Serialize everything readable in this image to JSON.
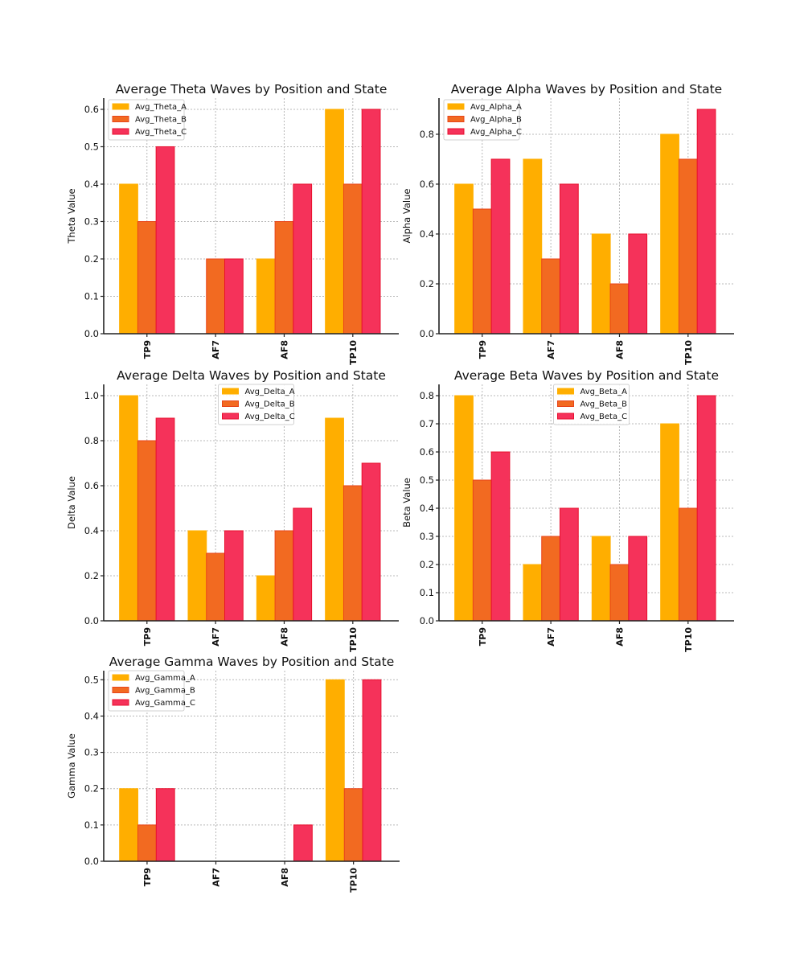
{
  "figure": {
    "colors": {
      "A": {
        "fill": "#FFAE00",
        "edge": "#FFB000"
      },
      "B": {
        "fill": "#F26A21",
        "edge": "#E8451A"
      },
      "C": {
        "fill": "#F5325A",
        "edge": "#E8102E"
      }
    }
  },
  "chart_data": [
    {
      "type": "bar",
      "title": "Average Theta Waves by Position and State",
      "xlabel": "",
      "ylabel": "Theta Value",
      "categories": [
        "TP9",
        "AF7",
        "AF8",
        "TP10"
      ],
      "series": [
        {
          "name": "Avg_Theta_A",
          "key": "A",
          "values": [
            0.4,
            0.0,
            0.2,
            0.6
          ]
        },
        {
          "name": "Avg_Theta_B",
          "key": "B",
          "values": [
            0.3,
            0.2,
            0.3,
            0.4
          ]
        },
        {
          "name": "Avg_Theta_C",
          "key": "C",
          "values": [
            0.5,
            0.2,
            0.4,
            0.6
          ]
        }
      ],
      "ylim": [
        0,
        0.63
      ],
      "yticks": [
        "0.0",
        "0.1",
        "0.2",
        "0.3",
        "0.4",
        "0.5",
        "0.6"
      ],
      "ytick_values": [
        0,
        0.1,
        0.2,
        0.3,
        0.4,
        0.5,
        0.6
      ],
      "grid": true,
      "legend_position": "upper-left"
    },
    {
      "type": "bar",
      "title": "Average Alpha Waves by Position and State",
      "xlabel": "",
      "ylabel": "Alpha Value",
      "categories": [
        "TP9",
        "AF7",
        "AF8",
        "TP10"
      ],
      "series": [
        {
          "name": "Avg_Alpha_A",
          "key": "A",
          "values": [
            0.6,
            0.7,
            0.4,
            0.8
          ]
        },
        {
          "name": "Avg_Alpha_B",
          "key": "B",
          "values": [
            0.5,
            0.3,
            0.2,
            0.7
          ]
        },
        {
          "name": "Avg_Alpha_C",
          "key": "C",
          "values": [
            0.7,
            0.6,
            0.4,
            0.9
          ]
        }
      ],
      "ylim": [
        0,
        0.945
      ],
      "yticks": [
        "0.0",
        "0.2",
        "0.4",
        "0.6",
        "0.8"
      ],
      "ytick_values": [
        0,
        0.2,
        0.4,
        0.6,
        0.8
      ],
      "grid": true,
      "legend_position": "upper-left"
    },
    {
      "type": "bar",
      "title": "Average Delta Waves by Position and State",
      "xlabel": "",
      "ylabel": "Delta Value",
      "categories": [
        "TP9",
        "AF7",
        "AF8",
        "TP10"
      ],
      "series": [
        {
          "name": "Avg_Delta_A",
          "key": "A",
          "values": [
            1.0,
            0.4,
            0.2,
            0.9
          ]
        },
        {
          "name": "Avg_Delta_B",
          "key": "B",
          "values": [
            0.8,
            0.3,
            0.4,
            0.6
          ]
        },
        {
          "name": "Avg_Delta_C",
          "key": "C",
          "values": [
            0.9,
            0.4,
            0.5,
            0.7
          ]
        }
      ],
      "ylim": [
        0,
        1.05
      ],
      "yticks": [
        "0.0",
        "0.2",
        "0.4",
        "0.6",
        "0.8",
        "1.0"
      ],
      "ytick_values": [
        0,
        0.2,
        0.4,
        0.6,
        0.8,
        1.0
      ],
      "grid": true,
      "legend_position": "upper-center"
    },
    {
      "type": "bar",
      "title": "Average Beta Waves by Position and State",
      "xlabel": "",
      "ylabel": "Beta Value",
      "categories": [
        "TP9",
        "AF7",
        "AF8",
        "TP10"
      ],
      "series": [
        {
          "name": "Avg_Beta_A",
          "key": "A",
          "values": [
            0.8,
            0.2,
            0.3,
            0.7
          ]
        },
        {
          "name": "Avg_Beta_B",
          "key": "B",
          "values": [
            0.5,
            0.3,
            0.2,
            0.4
          ]
        },
        {
          "name": "Avg_Beta_C",
          "key": "C",
          "values": [
            0.6,
            0.4,
            0.3,
            0.8
          ]
        }
      ],
      "ylim": [
        0,
        0.84
      ],
      "yticks": [
        "0.0",
        "0.1",
        "0.2",
        "0.3",
        "0.4",
        "0.5",
        "0.6",
        "0.7",
        "0.8"
      ],
      "ytick_values": [
        0,
        0.1,
        0.2,
        0.3,
        0.4,
        0.5,
        0.6,
        0.7,
        0.8
      ],
      "grid": true,
      "legend_position": "upper-center"
    },
    {
      "type": "bar",
      "title": "Average Gamma Waves by Position and State",
      "xlabel": "",
      "ylabel": "Gamma Value",
      "categories": [
        "TP9",
        "AF7",
        "AF8",
        "TP10"
      ],
      "series": [
        {
          "name": "Avg_Gamma_A",
          "key": "A",
          "values": [
            0.2,
            0.0,
            0.0,
            0.5
          ]
        },
        {
          "name": "Avg_Gamma_B",
          "key": "B",
          "values": [
            0.1,
            0.0,
            0.0,
            0.2
          ]
        },
        {
          "name": "Avg_Gamma_C",
          "key": "C",
          "values": [
            0.2,
            0.0,
            0.1,
            0.5
          ]
        }
      ],
      "ylim": [
        0,
        0.525
      ],
      "yticks": [
        "0.0",
        "0.1",
        "0.2",
        "0.3",
        "0.4",
        "0.5"
      ],
      "ytick_values": [
        0,
        0.1,
        0.2,
        0.3,
        0.4,
        0.5
      ],
      "grid": true,
      "legend_position": "upper-left"
    }
  ]
}
